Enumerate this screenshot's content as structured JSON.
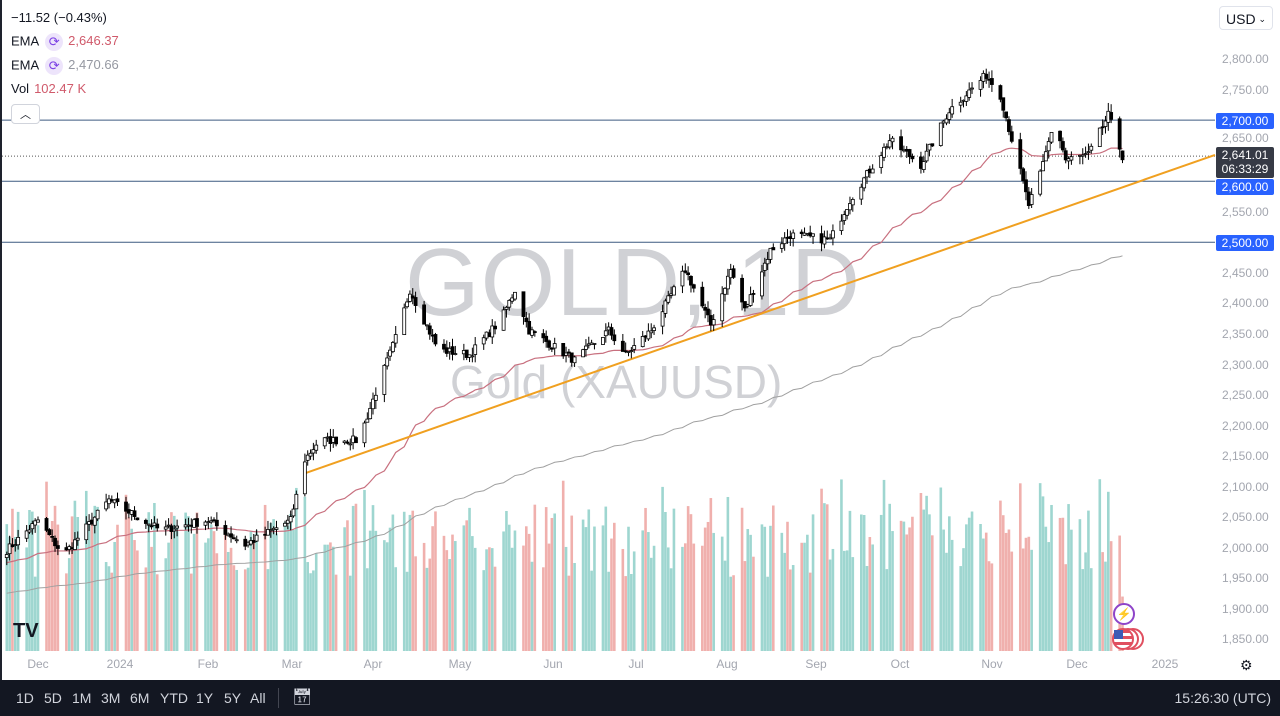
{
  "legend": {
    "change": "−11.52 (−0.43%)",
    "ema1": {
      "label": "EMA",
      "value": "2,646.37",
      "color": "#d05a6b"
    },
    "ema2": {
      "label": "EMA",
      "value": "2,470.66",
      "color": "#9598a1"
    },
    "vol": {
      "label": "Vol",
      "value": "102.47 K",
      "color": "#d05a6b"
    }
  },
  "currency": "USD",
  "watermark": {
    "title": "GOLD, 1D",
    "subtitle": "Gold (XAUUSD)"
  },
  "price_axis": {
    "labels": [
      "2,800.00",
      "2,750.00",
      "2,650.00",
      "2,550.00",
      "2,450.00",
      "2,400.00",
      "2,350.00",
      "2,300.00",
      "2,250.00",
      "2,200.00",
      "2,150.00",
      "2,100.00",
      "2,050.00",
      "2,000.00",
      "1,950.00",
      "1,900.00",
      "1,850.00"
    ],
    "tags": [
      "2,700.00",
      "2,600.00",
      "2,500.00"
    ],
    "current_price": "2,641.01",
    "countdown": "06:33:29"
  },
  "time_axis": [
    "Dec",
    "2024",
    "Feb",
    "Mar",
    "Apr",
    "May",
    "Jun",
    "Jul",
    "Aug",
    "Sep",
    "Oct",
    "Nov",
    "Dec",
    "2025"
  ],
  "toolbar": {
    "ranges": [
      "1D",
      "5D",
      "1M",
      "3M",
      "6M",
      "YTD",
      "1Y",
      "5Y",
      "All"
    ],
    "clock": "15:26:30 (UTC)"
  },
  "chart_data": {
    "type": "candlestick",
    "symbol": "XAUUSD",
    "interval": "1D",
    "ylim": [
      1830,
      2830
    ],
    "candle_colors": {
      "up": "#ffffff",
      "down": "#000000"
    },
    "volume_colors": {
      "up": "#9ed6d0",
      "down": "#f0b0ad"
    },
    "horizontal_lines": [
      2700,
      2600,
      2500
    ],
    "trendline": {
      "from": [
        "2024-03-04",
        2122
      ],
      "to": [
        "2025-01-02",
        2643
      ],
      "color": "#f0a020"
    },
    "close_path": [
      [
        "2023-11-20",
        1996
      ],
      [
        "2023-12-01",
        2045
      ],
      [
        "2023-12-10",
        1988
      ],
      [
        "2023-12-26",
        2078
      ],
      [
        "2024-01-13",
        2029
      ],
      [
        "2024-01-30",
        2045
      ],
      [
        "2024-02-12",
        2005
      ],
      [
        "2024-02-28",
        2045
      ],
      [
        "2024-03-04",
        2144
      ],
      [
        "2024-03-09",
        2176
      ],
      [
        "2024-03-23",
        2176
      ],
      [
        "2024-03-28",
        2242
      ],
      [
        "2024-04-06",
        2356
      ],
      [
        "2024-04-10",
        2422
      ],
      [
        "2024-04-20",
        2324
      ],
      [
        "2024-05-01",
        2316
      ],
      [
        "2024-05-12",
        2373
      ],
      [
        "2024-05-17",
        2422
      ],
      [
        "2024-05-22",
        2356
      ],
      [
        "2024-06-07",
        2307
      ],
      [
        "2024-06-19",
        2356
      ],
      [
        "2024-06-25",
        2316
      ],
      [
        "2024-07-04",
        2356
      ],
      [
        "2024-07-16",
        2455
      ],
      [
        "2024-07-25",
        2365
      ],
      [
        "2024-08-01",
        2455
      ],
      [
        "2024-08-06",
        2389
      ],
      [
        "2024-08-15",
        2487
      ],
      [
        "2024-08-22",
        2512
      ],
      [
        "2024-09-05",
        2504
      ],
      [
        "2024-09-12",
        2569
      ],
      [
        "2024-09-19",
        2618
      ],
      [
        "2024-09-26",
        2667
      ],
      [
        "2024-10-07",
        2627
      ],
      [
        "2024-10-17",
        2716
      ],
      [
        "2024-10-30",
        2774
      ],
      [
        "2024-11-04",
        2741
      ],
      [
        "2024-11-09",
        2651
      ],
      [
        "2024-11-14",
        2561
      ],
      [
        "2024-11-18",
        2610
      ],
      [
        "2024-11-23",
        2700
      ],
      [
        "2024-11-27",
        2635
      ],
      [
        "2024-12-05",
        2643
      ],
      [
        "2024-12-12",
        2708
      ],
      [
        "2024-12-17",
        2641
      ]
    ],
    "ema_values_last": {
      "ema_fast": 2646.37,
      "ema_slow": 2470.66
    },
    "last_volume": "102.47 K"
  }
}
